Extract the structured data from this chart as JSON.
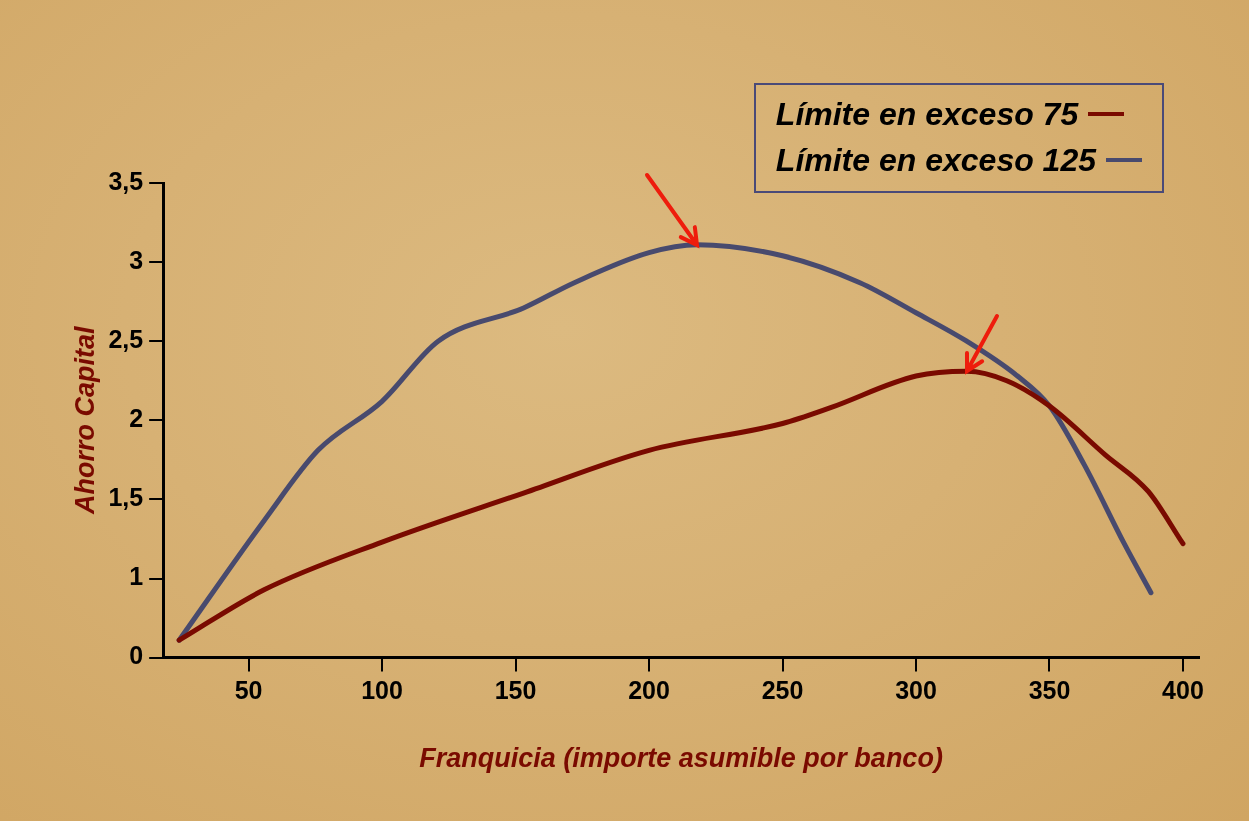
{
  "chart_data": {
    "type": "line",
    "xlabel": "Franquicia (importe asumible por banco)",
    "ylabel": "Ahorro Capital",
    "xlim": [
      18,
      406
    ],
    "xticks": [
      50,
      100,
      150,
      200,
      250,
      300,
      350,
      400
    ],
    "ylim": [
      0.5,
      3.5
    ],
    "yticks": [
      {
        "value": 0.5,
        "label": "0"
      },
      1,
      {
        "value": 1.5,
        "label": "1,5"
      },
      2,
      {
        "value": 2.5,
        "label": "2,5"
      },
      3,
      {
        "value": 3.5,
        "label": "3,5"
      }
    ],
    "grid": false,
    "legend": "top right",
    "marker": "none",
    "line_style": "solid",
    "series": [
      {
        "name": "Límite en exceso 75",
        "color": "#7a0a00",
        "x": [
          24,
          56,
          100,
          153,
          200,
          250,
          268,
          300,
          319,
          334,
          350,
          371,
          387,
          400
        ],
        "values": [
          0.61,
          0.93,
          1.23,
          1.54,
          1.81,
          1.98,
          2.08,
          2.28,
          2.31,
          2.25,
          2.09,
          1.78,
          1.55,
          1.22
        ]
      },
      {
        "name": "Límite en exceso 125",
        "color": "#484a6e",
        "x": [
          24,
          56,
          76,
          100,
          121,
          153,
          172,
          200,
          218,
          250,
          279,
          300,
          319,
          338,
          350,
          363,
          378,
          388
        ],
        "values": [
          0.61,
          1.37,
          1.81,
          2.12,
          2.5,
          2.71,
          2.87,
          3.06,
          3.11,
          3.04,
          2.87,
          2.68,
          2.5,
          2.28,
          2.09,
          1.72,
          1.22,
          0.91
        ]
      }
    ]
  }
}
